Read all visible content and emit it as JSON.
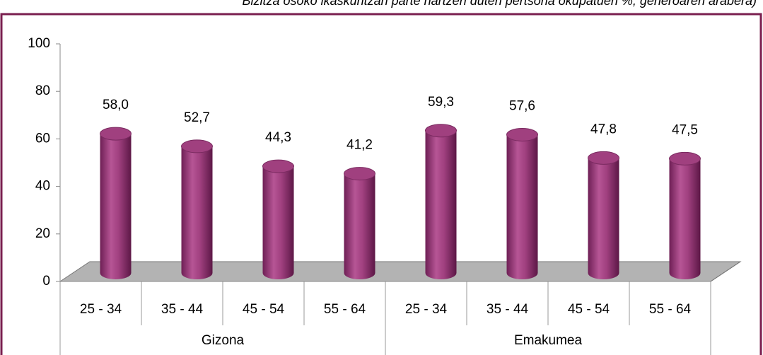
{
  "chart_data": {
    "type": "bar",
    "title": "Bizitza osoko ikaskuntzan parte hartzen duten pertsona okupatuen %, generoaren arabera)",
    "categories": [
      "25 - 34",
      "35 - 44",
      "45 - 54",
      "55 - 64",
      "25 - 34",
      "35 - 44",
      "45 - 54",
      "55 - 64"
    ],
    "groups": [
      "Gizona",
      "Emakumea"
    ],
    "values": [
      58.0,
      52.7,
      44.3,
      41.2,
      59.3,
      57.6,
      47.8,
      47.5
    ],
    "value_labels": [
      "58,0",
      "52,7",
      "44,3",
      "41,2",
      "59,3",
      "57,6",
      "47,8",
      "47,5"
    ],
    "color": "#a0407f",
    "ylim": [
      0,
      100
    ],
    "yticks": [
      0,
      20,
      40,
      60,
      80,
      100
    ],
    "grid": false
  }
}
